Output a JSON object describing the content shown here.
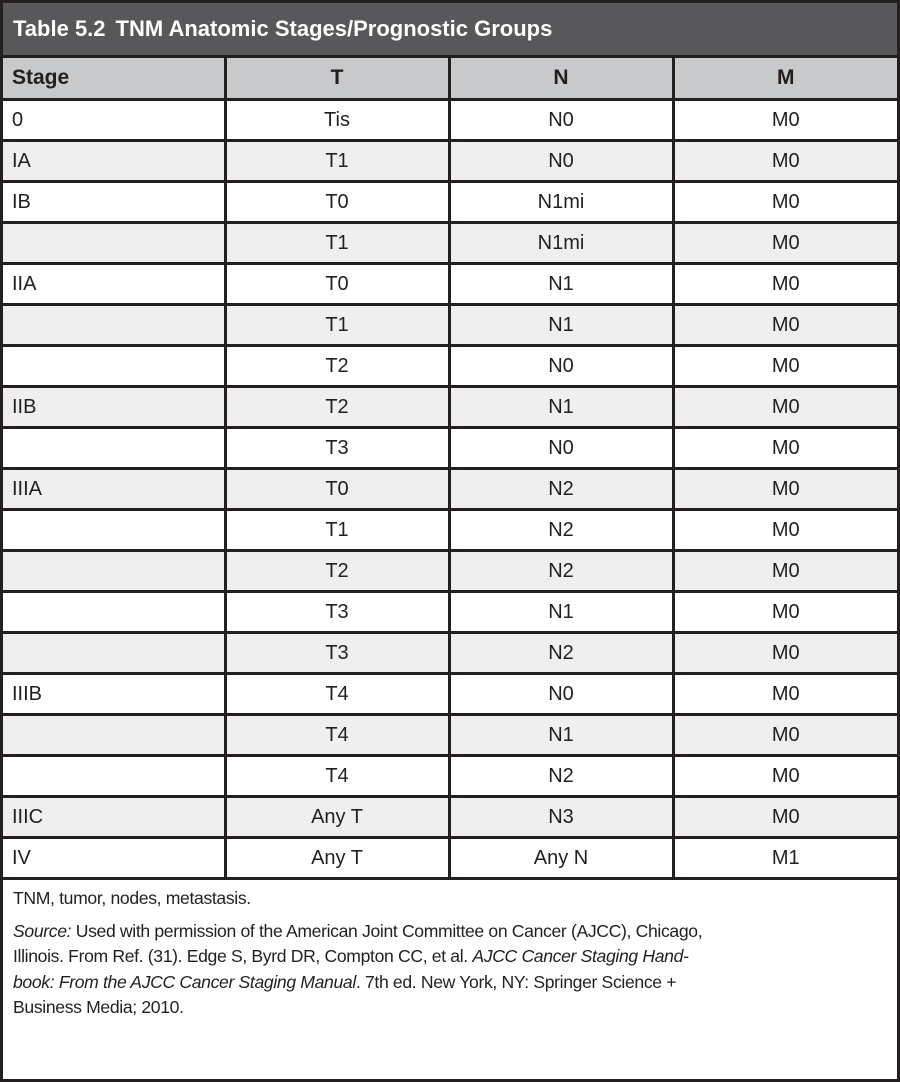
{
  "title": {
    "number": "Table 5.2",
    "text": "TNM Anatomic Stages/Prognostic Groups"
  },
  "columns": [
    "Stage",
    "T",
    "N",
    "M"
  ],
  "rows": [
    [
      "0",
      "Tis",
      "N0",
      "M0"
    ],
    [
      "IA",
      "T1",
      "N0",
      "M0"
    ],
    [
      "IB",
      "T0",
      "N1mi",
      "M0"
    ],
    [
      "",
      "T1",
      "N1mi",
      "M0"
    ],
    [
      "IIA",
      "T0",
      "N1",
      "M0"
    ],
    [
      "",
      "T1",
      "N1",
      "M0"
    ],
    [
      "",
      "T2",
      "N0",
      "M0"
    ],
    [
      "IIB",
      "T2",
      "N1",
      "M0"
    ],
    [
      "",
      "T3",
      "N0",
      "M0"
    ],
    [
      "IIIA",
      "T0",
      "N2",
      "M0"
    ],
    [
      "",
      "T1",
      "N2",
      "M0"
    ],
    [
      "",
      "T2",
      "N2",
      "M0"
    ],
    [
      "",
      "T3",
      "N1",
      "M0"
    ],
    [
      "",
      "T3",
      "N2",
      "M0"
    ],
    [
      "IIIB",
      "T4",
      "N0",
      "M0"
    ],
    [
      "",
      "T4",
      "N1",
      "M0"
    ],
    [
      "",
      "T4",
      "N2",
      "M0"
    ],
    [
      "IIIC",
      "Any T",
      "N3",
      "M0"
    ],
    [
      "IV",
      "Any T",
      "Any N",
      "M1"
    ]
  ],
  "footnote": {
    "abbreviations": "TNM, tumor, nodes, metastasis.",
    "source_lines": [
      [
        {
          "text": "Source:",
          "italic": true
        },
        {
          "text": " Used with permission of the American Joint Committee on Cancer (AJCC), Chicago,",
          "italic": false
        }
      ],
      [
        {
          "text": "Illinois. From Ref. (31). Edge S, Byrd DR, Compton CC, et al. ",
          "italic": false
        },
        {
          "text": "AJCC Cancer Staging Hand-",
          "italic": true
        }
      ],
      [
        {
          "text": "book: From the AJCC Cancer Staging Manual",
          "italic": true
        },
        {
          "text": ". 7th ed. New York, NY: Springer Science +",
          "italic": false
        }
      ],
      [
        {
          "text": "Business Media; 2010.",
          "italic": false
        }
      ]
    ]
  },
  "colors": {
    "title_bar": "#58585a",
    "header_row": "#c8c9cb",
    "alt_row": "#efefef",
    "border": "#231f20"
  }
}
